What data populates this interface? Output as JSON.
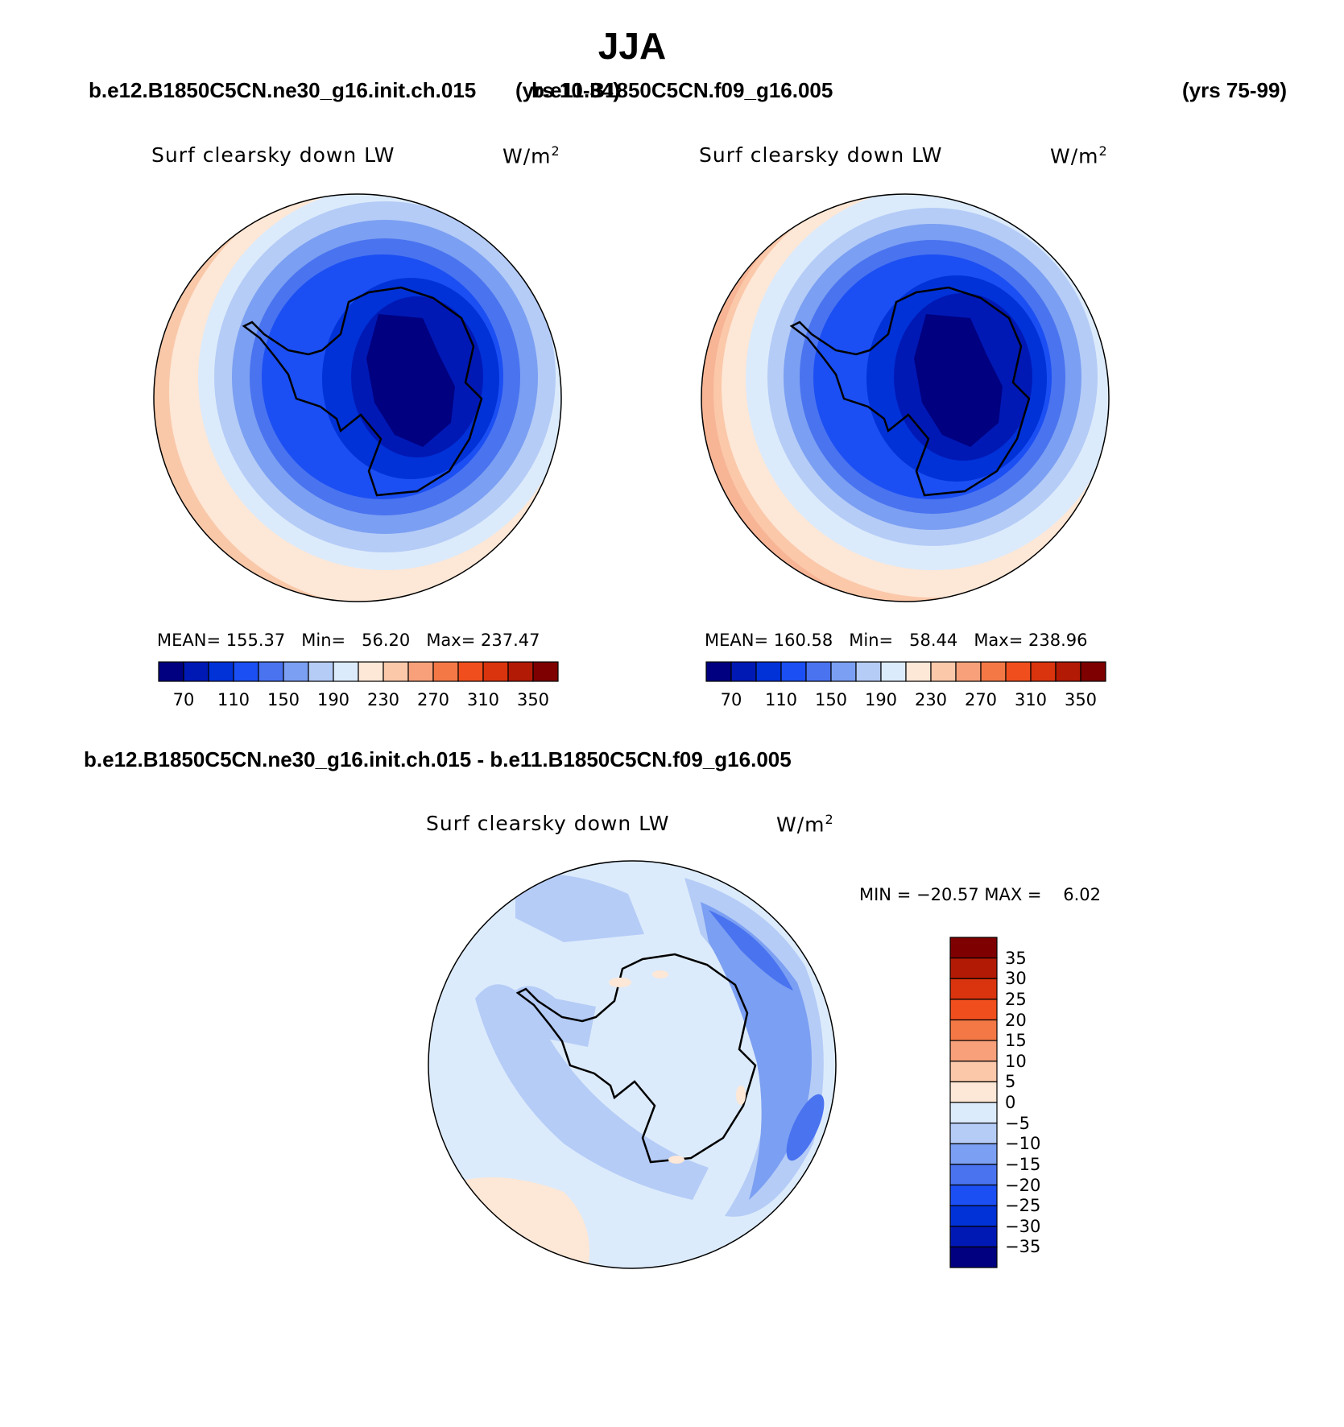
{
  "season": "JJA",
  "case1": {
    "name": "b.e12.B1850C5CN.ne30_g16.init.ch.015",
    "years": "(yrs 10-34)"
  },
  "case2": {
    "name": "b.e11.B1850C5CN.f09_g16.005",
    "years": "(yrs 75-99)"
  },
  "panels": [
    {
      "field": "Surf clearsky down LW",
      "units_base": "W/m",
      "units_exp": "2",
      "mean_label": "MEAN=",
      "mean": "155.37",
      "min_label": "Min=",
      "min": "56.20",
      "max_label": "Max=",
      "max": "237.47"
    },
    {
      "field": "Surf clearsky down LW",
      "units_base": "W/m",
      "units_exp": "2",
      "mean_label": "MEAN=",
      "mean": "160.58",
      "min_label": "Min=",
      "min": "58.44",
      "max_label": "Max=",
      "max": "238.96"
    }
  ],
  "colorbar_top": {
    "colors": [
      "#000080",
      "#0019b5",
      "#0032d8",
      "#1b4ff3",
      "#4a73f0",
      "#7b9ff2",
      "#b5ccf7",
      "#dcebfb",
      "#fde7d6",
      "#fbc8aa",
      "#f7a07a",
      "#f47845",
      "#f04f1d",
      "#d9340e",
      "#b21a05",
      "#7f0000"
    ],
    "labels": [
      "70",
      "110",
      "150",
      "190",
      "230",
      "270",
      "310",
      "350"
    ]
  },
  "diff": {
    "title": "b.e12.B1850C5CN.ne30_g16.init.ch.015 - b.e11.B1850C5CN.f09_g16.005",
    "field": "Surf clearsky down LW",
    "units_base": "W/m",
    "units_exp": "2",
    "min_label": "MIN =",
    "min": "−20.57",
    "max_label": "MAX =",
    "max": "6.02"
  },
  "colorbar_diff": {
    "colors": [
      "#7f0000",
      "#b21a05",
      "#d9340e",
      "#f04f1d",
      "#f47845",
      "#f7a07a",
      "#fbc8aa",
      "#fde7d6",
      "#dcebfb",
      "#b5ccf7",
      "#7b9ff2",
      "#4a73f0",
      "#1b4ff3",
      "#0032d8",
      "#0019b5",
      "#000080"
    ],
    "labels": [
      "35",
      "30",
      "25",
      "20",
      "15",
      "10",
      "5",
      "0",
      "−5",
      "−10",
      "−15",
      "−20",
      "−25",
      "−30",
      "−35"
    ]
  }
}
